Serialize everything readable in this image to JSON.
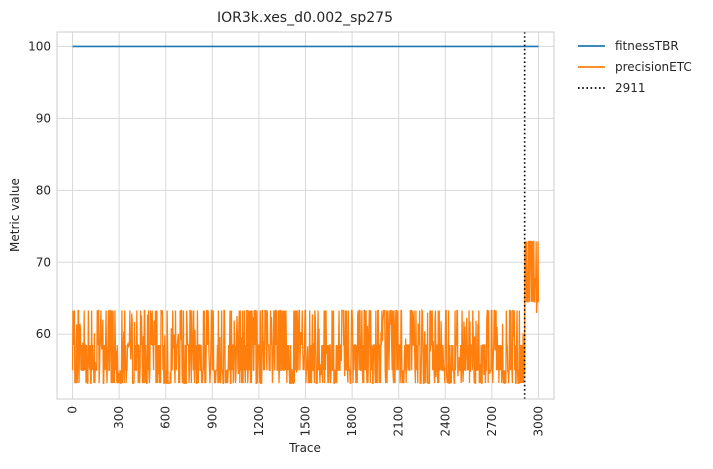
{
  "chart_data": {
    "type": "line",
    "title": "IOR3k.xes_d0.002_sp275",
    "xlabel": "Trace",
    "ylabel": "Metric value",
    "xlim": [
      -100,
      3100
    ],
    "ylim": [
      51,
      102
    ],
    "x_ticks": [
      0,
      300,
      600,
      900,
      1200,
      1500,
      1800,
      2100,
      2400,
      2700,
      3000
    ],
    "y_ticks": [
      60,
      70,
      80,
      90,
      100
    ],
    "grid": true,
    "legend_position": "outside-top-right",
    "series": [
      {
        "name": "fitnessTBR",
        "color": "#1f77b4",
        "points": [
          [
            0,
            100
          ],
          [
            3000,
            100
          ]
        ]
      },
      {
        "name": "precisionETC",
        "color": "#ff7f0e",
        "x_range": [
          0,
          3000
        ],
        "oscillation_band_before_drift": [
          53.2,
          63.3
        ],
        "dominant_levels_before_drift": [
          53.2,
          55,
          58.5,
          63.3
        ],
        "oscillation_band_after_drift": [
          62.3,
          72.9
        ],
        "dominant_levels_after_drift": [
          64.5,
          72.9
        ]
      }
    ],
    "vline": {
      "label": "2911",
      "x": 2911,
      "style": "dotted",
      "color": "#000000"
    }
  }
}
